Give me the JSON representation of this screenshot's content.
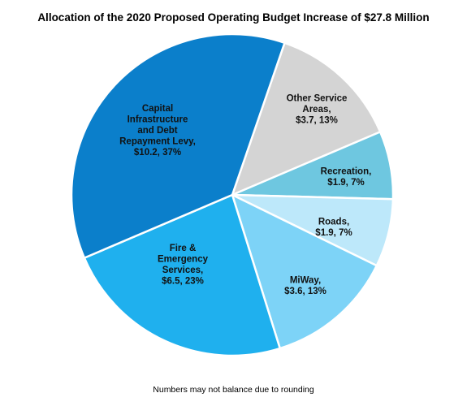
{
  "title": "Allocation of the 2020 Proposed Operating Budget Increase of $27.8 Million",
  "footnote": "Numbers may not balance due to rounding",
  "chart_data": {
    "type": "pie",
    "title": "Allocation of the 2020 Proposed Operating Budget Increase of $27.8 Million",
    "total": 27.8,
    "unit": "$ Million",
    "start_angle_deg": 19,
    "direction": "clockwise",
    "slices": [
      {
        "key": "other-service-areas",
        "label_lines": [
          "Other Service",
          "Areas,",
          "$3.7, 13%"
        ],
        "value": 3.7,
        "percent": 13,
        "color": "#d4d4d4"
      },
      {
        "key": "recreation",
        "label_lines": [
          "Recreation,",
          "$1.9, 7%"
        ],
        "value": 1.9,
        "percent": 7,
        "color": "#6ec7e0"
      },
      {
        "key": "roads",
        "label_lines": [
          "Roads,",
          "$1.9, 7%"
        ],
        "value": 1.9,
        "percent": 7,
        "color": "#bde8fa"
      },
      {
        "key": "miway",
        "label_lines": [
          "MiWay,",
          "$3.6, 13%"
        ],
        "value": 3.6,
        "percent": 13,
        "color": "#7dd3f7"
      },
      {
        "key": "fire-emergency-services",
        "label_lines": [
          "Fire &",
          "Emergency",
          "Services,",
          "$6.5, 23%"
        ],
        "value": 6.5,
        "percent": 23,
        "color": "#1fb0ee"
      },
      {
        "key": "capital-infrastructure",
        "label_lines": [
          "Capital",
          "Infrastructure",
          "and Debt",
          "Repayment Levy,",
          "$10.2, 37%"
        ],
        "value": 10.2,
        "percent": 37,
        "color": "#0b7fcb"
      }
    ]
  }
}
